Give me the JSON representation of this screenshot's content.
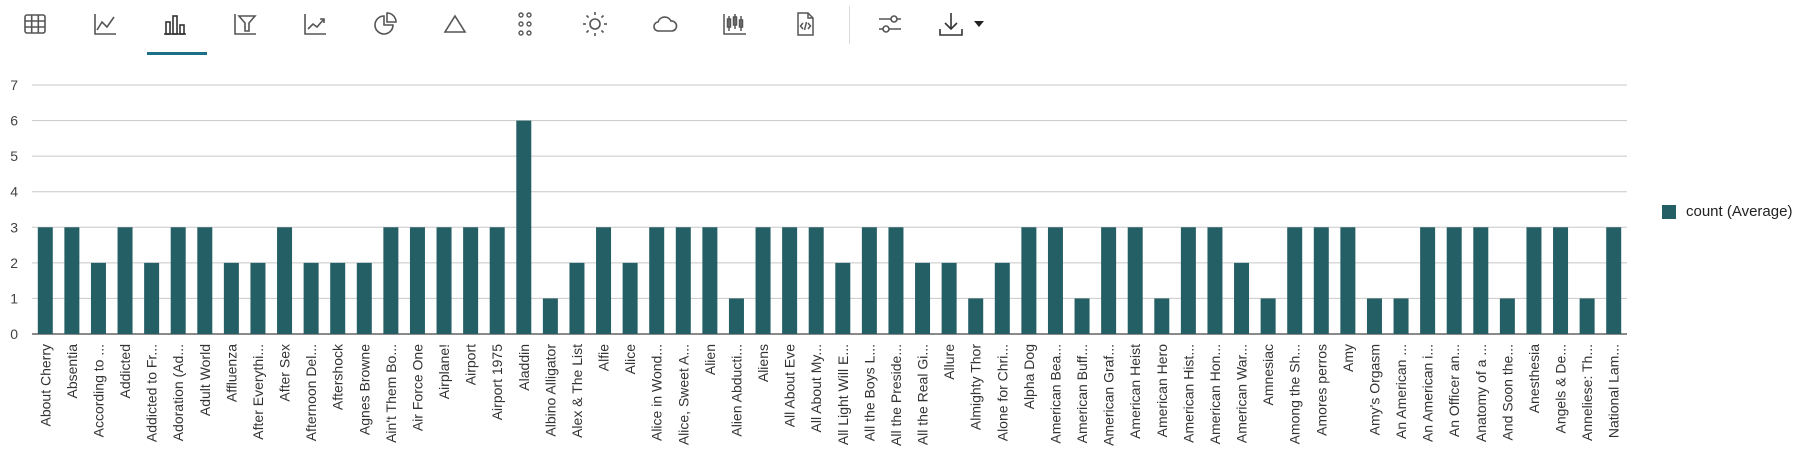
{
  "toolbar": {
    "buttons": [
      {
        "name": "table-view-icon",
        "active": false
      },
      {
        "name": "line-chart-icon",
        "active": false
      },
      {
        "name": "bar-chart-icon",
        "active": true
      },
      {
        "name": "funnel-chart-icon",
        "active": false
      },
      {
        "name": "trend-chart-icon",
        "active": false
      },
      {
        "name": "pie-chart-icon",
        "active": false
      },
      {
        "name": "triangle-icon",
        "active": false
      },
      {
        "name": "dot-grid-icon",
        "active": false
      },
      {
        "name": "sun-icon",
        "active": false
      },
      {
        "name": "cloud-icon",
        "active": false
      },
      {
        "name": "candlestick-icon",
        "active": false
      },
      {
        "name": "code-file-icon",
        "active": false
      },
      {
        "name": "sliders-icon",
        "active": false
      },
      {
        "name": "download-icon",
        "active": false
      }
    ]
  },
  "legend": {
    "label": "count (Average)"
  },
  "colors": {
    "bar": "#255f66",
    "grid": "#c8c8c8",
    "accent": "#1b6f86"
  },
  "chart_data": {
    "type": "bar",
    "ylim": [
      0,
      7
    ],
    "yticks": [
      0,
      1,
      2,
      3,
      4,
      5,
      6,
      7
    ],
    "grid": true,
    "legend_position": "right",
    "series": [
      {
        "name": "count (Average)"
      }
    ],
    "categories": [
      "About Cherry",
      "Absentia",
      "According to ...",
      "Addicted",
      "Addicted to Fr...",
      "Adoration (Ad...",
      "Adult World",
      "Affluenza",
      "After Everythi...",
      "After Sex",
      "Afternoon Del...",
      "Aftershock",
      "Agnes Browne",
      "Ain't Them Bo...",
      "Air Force One",
      "Airplane!",
      "Airport",
      "Airport 1975",
      "Aladdin",
      "Albino Alligator",
      "Alex & The List",
      "Alfie",
      "Alice",
      "Alice in Wond...",
      "Alice, Sweet A...",
      "Alien",
      "Alien Abducti...",
      "Aliens",
      "All About Eve",
      "All About My...",
      "All Light Will E...",
      "All the Boys L...",
      "All the Preside...",
      "All the Real Gi...",
      "Allure",
      "Almighty Thor",
      "Alone for Chri...",
      "Alpha Dog",
      "American Bea...",
      "American Buff...",
      "American Graf...",
      "American Heist",
      "American Hero",
      "American Hist...",
      "American Hon...",
      "American War...",
      "Amnesiac",
      "Among the Sh...",
      "Amores perros",
      "Amy",
      "Amy's Orgasm",
      "An American ...",
      "An American i...",
      "An Officer an...",
      "Anatomy of a ...",
      "And Soon the...",
      "Anesthesia",
      "Angels & De...",
      "Anneliese: Th...",
      "National Lam..."
    ],
    "values": [
      3,
      3,
      2,
      3,
      2,
      3,
      3,
      2,
      2,
      3,
      2,
      2,
      2,
      3,
      3,
      3,
      3,
      3,
      6,
      1,
      2,
      3,
      2,
      3,
      3,
      3,
      1,
      3,
      3,
      3,
      2,
      3,
      3,
      2,
      2,
      1,
      2,
      3,
      3,
      1,
      3,
      3,
      1,
      3,
      3,
      2,
      1,
      3,
      3,
      3,
      1,
      1,
      3,
      3,
      3,
      1,
      3,
      3,
      1,
      3
    ]
  }
}
